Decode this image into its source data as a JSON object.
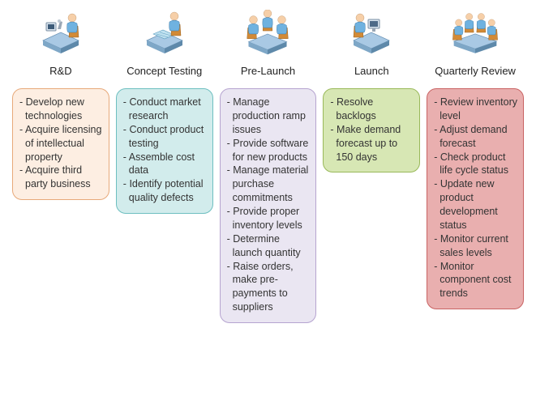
{
  "meta": {
    "type": "infographic",
    "layout": "5-column process",
    "background_color": "#ffffff",
    "title_fontsize": 13,
    "body_fontsize": 12.5,
    "card_border_radius": 12,
    "icon_palette": {
      "skin": "#f6cfa8",
      "shirt": "#6fb2e0",
      "chair": "#c57d2c",
      "desk": "#8fb8db",
      "monitor": "#9aa7b5"
    }
  },
  "columns": [
    {
      "id": "rd",
      "icon": "person-lab-desk",
      "title": "R&D",
      "card": {
        "bg": "#fdeee2",
        "border": "#e7a97a",
        "items": [
          "Develop new technologies",
          "Acquire licensing of intellectual property",
          "Acquire third party business"
        ]
      }
    },
    {
      "id": "concept",
      "icon": "person-drafting-desk",
      "title": "Concept Testing",
      "card": {
        "bg": "#d2ecec",
        "border": "#6ebfc0",
        "items": [
          "Conduct market research",
          "Conduct product testing",
          "Assemble cost data",
          "Identify potential quality defects"
        ]
      }
    },
    {
      "id": "prelaunch",
      "icon": "three-people-meeting-table",
      "title": "Pre-Launch",
      "card": {
        "bg": "#eae6f2",
        "border": "#b6a4d0",
        "items": [
          "Manage production ramp issues",
          "Provide software for new products",
          "Manage material purchase commitments",
          "Provide proper inventory levels",
          "Determine launch quantity",
          "Raise orders, make pre-payments to suppliers"
        ]
      }
    },
    {
      "id": "launch",
      "icon": "person-computer-desk",
      "title": "Launch",
      "card": {
        "bg": "#d7e7b4",
        "border": "#99b95a",
        "items": [
          "Resolve backlogs",
          "Make demand forecast up to 150 days"
        ]
      }
    },
    {
      "id": "quarterly",
      "icon": "four-people-conference-table",
      "title": "Quarterly Review",
      "card": {
        "bg": "#e9afaf",
        "border": "#c96363",
        "items": [
          "Review inventory level",
          "Adjust demand forecast",
          "Check product life cycle status",
          "Update new product development status",
          "Monitor current sales levels",
          "Monitor component cost trends"
        ]
      }
    }
  ]
}
